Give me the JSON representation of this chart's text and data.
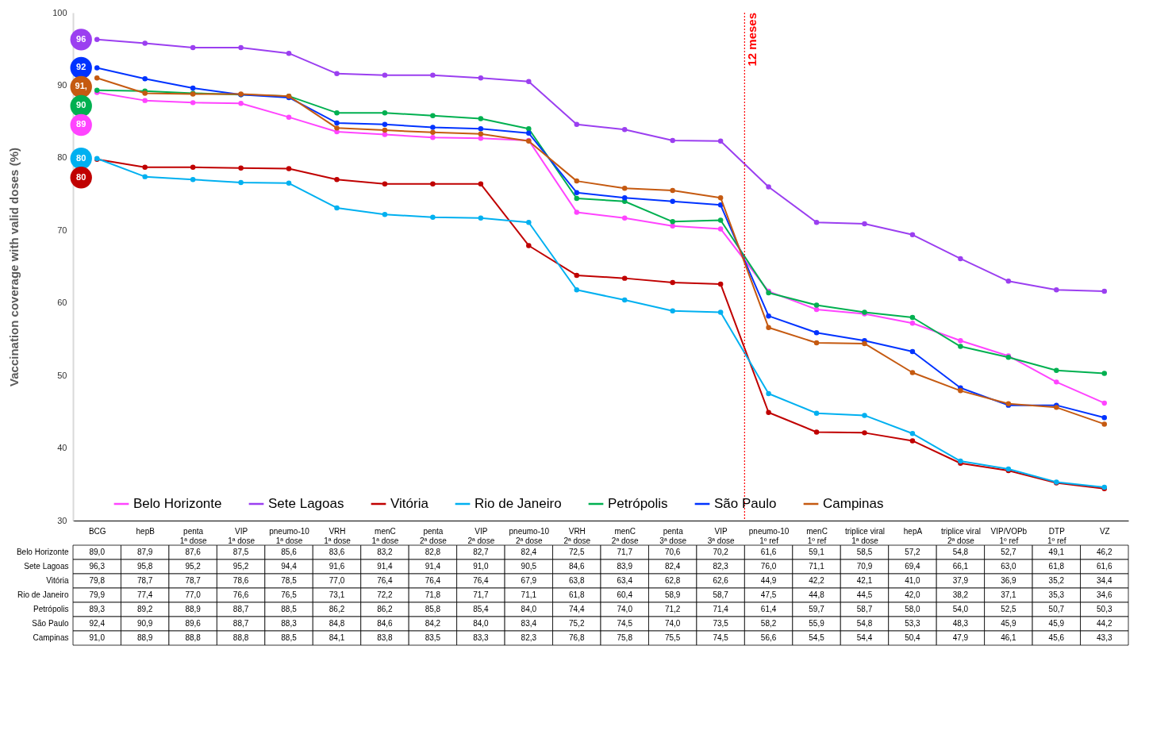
{
  "chart_data": {
    "type": "line",
    "ylabel": "Vaccination coverage with valid doses (%)",
    "categories": [
      "BCG",
      "hepB",
      "penta 1ª dose",
      "VIP 1ª dose",
      "pneumo-10 1ª dose",
      "VRH 1ª dose",
      "menC 1ª dose",
      "penta 2ª dose",
      "VIP 2ª dose",
      "pneumo-10 2ª dose",
      "VRH 2ª dose",
      "menC 2ª dose",
      "penta 3ª dose",
      "VIP 3ª dose",
      "pneumo-10 1º ref",
      "menC 1º ref",
      "triplice viral 1ª dose",
      "hepA",
      "triplice viral 2ª dose",
      "VIP/VOPb 1º ref",
      "DTP 1º ref",
      "VZ"
    ],
    "series": [
      {
        "name": "Belo Horizonte",
        "color": "#ff44ff",
        "values": [
          89.0,
          87.9,
          87.6,
          87.5,
          85.6,
          83.6,
          83.2,
          82.8,
          82.7,
          82.4,
          72.5,
          71.7,
          70.6,
          70.2,
          61.6,
          59.1,
          58.5,
          57.2,
          54.8,
          52.7,
          49.1,
          46.2
        ],
        "value_labels": [
          "89,0",
          "87,9",
          "87,6",
          "87,5",
          "85,6",
          "83,6",
          "83,2",
          "82,8",
          "82,7",
          "82,4",
          "72,5",
          "71,7",
          "70,6",
          "70,2",
          "61,6",
          "59,1",
          "58,5",
          "57,2",
          "54,8",
          "52,7",
          "49,1",
          "46,2"
        ]
      },
      {
        "name": "Sete Lagoas",
        "color": "#9b3ff0",
        "values": [
          96.3,
          95.8,
          95.2,
          95.2,
          94.4,
          91.6,
          91.4,
          91.4,
          91.0,
          90.5,
          84.6,
          83.9,
          82.4,
          82.3,
          76.0,
          71.1,
          70.9,
          69.4,
          66.1,
          63.0,
          61.8,
          61.6
        ],
        "value_labels": [
          "96,3",
          "95,8",
          "95,2",
          "95,2",
          "94,4",
          "91,6",
          "91,4",
          "91,4",
          "91,0",
          "90,5",
          "84,6",
          "83,9",
          "82,4",
          "82,3",
          "76,0",
          "71,1",
          "70,9",
          "69,4",
          "66,1",
          "63,0",
          "61,8",
          "61,6"
        ]
      },
      {
        "name": "Vitória",
        "color": "#c00000",
        "values": [
          79.8,
          78.7,
          78.7,
          78.6,
          78.5,
          77.0,
          76.4,
          76.4,
          76.4,
          67.9,
          63.8,
          63.4,
          62.8,
          62.6,
          44.9,
          42.2,
          42.1,
          41.0,
          37.9,
          36.9,
          35.2,
          34.4
        ],
        "value_labels": [
          "79,8",
          "78,7",
          "78,7",
          "78,6",
          "78,5",
          "77,0",
          "76,4",
          "76,4",
          "76,4",
          "67,9",
          "63,8",
          "63,4",
          "62,8",
          "62,6",
          "44,9",
          "42,2",
          "42,1",
          "41,0",
          "37,9",
          "36,9",
          "35,2",
          "34,4"
        ]
      },
      {
        "name": "Rio de Janeiro",
        "color": "#00b0f0",
        "values": [
          79.9,
          77.4,
          77.0,
          76.6,
          76.5,
          73.1,
          72.2,
          71.8,
          71.7,
          71.1,
          61.8,
          60.4,
          58.9,
          58.7,
          47.5,
          44.8,
          44.5,
          42.0,
          38.2,
          37.1,
          35.3,
          34.6
        ],
        "value_labels": [
          "79,9",
          "77,4",
          "77,0",
          "76,6",
          "76,5",
          "73,1",
          "72,2",
          "71,8",
          "71,7",
          "71,1",
          "61,8",
          "60,4",
          "58,9",
          "58,7",
          "47,5",
          "44,8",
          "44,5",
          "42,0",
          "38,2",
          "37,1",
          "35,3",
          "34,6"
        ]
      },
      {
        "name": "Petrópolis",
        "color": "#00b050",
        "values": [
          89.3,
          89.2,
          88.9,
          88.7,
          88.5,
          86.2,
          86.2,
          85.8,
          85.4,
          84.0,
          74.4,
          74.0,
          71.2,
          71.4,
          61.4,
          59.7,
          58.7,
          58.0,
          54.0,
          52.5,
          50.7,
          50.3
        ],
        "value_labels": [
          "89,3",
          "89,2",
          "88,9",
          "88,7",
          "88,5",
          "86,2",
          "86,2",
          "85,8",
          "85,4",
          "84,0",
          "74,4",
          "74,0",
          "71,2",
          "71,4",
          "61,4",
          "59,7",
          "58,7",
          "58,0",
          "54,0",
          "52,5",
          "50,7",
          "50,3"
        ]
      },
      {
        "name": "São Paulo",
        "color": "#0033ff",
        "values": [
          92.4,
          90.9,
          89.6,
          88.7,
          88.3,
          84.8,
          84.6,
          84.2,
          84.0,
          83.4,
          75.2,
          74.5,
          74.0,
          73.5,
          58.2,
          55.9,
          54.8,
          53.3,
          48.3,
          45.9,
          45.9,
          44.2
        ],
        "value_labels": [
          "92,4",
          "90,9",
          "89,6",
          "88,7",
          "88,3",
          "84,8",
          "84,6",
          "84,2",
          "84,0",
          "83,4",
          "75,2",
          "74,5",
          "74,0",
          "73,5",
          "58,2",
          "55,9",
          "54,8",
          "53,3",
          "48,3",
          "45,9",
          "45,9",
          "44,2"
        ]
      },
      {
        "name": "Campinas",
        "color": "#c55a11",
        "values": [
          91.0,
          88.9,
          88.8,
          88.8,
          88.5,
          84.1,
          83.8,
          83.5,
          83.3,
          82.3,
          76.8,
          75.8,
          75.5,
          74.5,
          56.6,
          54.5,
          54.4,
          50.4,
          47.9,
          46.1,
          45.6,
          43.3
        ],
        "value_labels": [
          "91,0",
          "88,9",
          "88,8",
          "88,8",
          "88,5",
          "84,1",
          "83,8",
          "83,5",
          "83,3",
          "82,3",
          "76,8",
          "75,8",
          "75,5",
          "74,5",
          "56,6",
          "54,5",
          "54,4",
          "50,4",
          "47,9",
          "46,1",
          "45,6",
          "43,3"
        ]
      }
    ],
    "ylim": [
      30,
      100
    ],
    "yticks": [
      30,
      40,
      50,
      60,
      70,
      80,
      90,
      100
    ],
    "ref_lines": [
      {
        "axis": "x",
        "value": "VIP 3ª dose",
        "label": "12 meses",
        "color": "#ff0000",
        "line_style": "dotted"
      }
    ],
    "annotations": [
      "96",
      "92",
      "91,",
      "90",
      "89",
      "80",
      "80"
    ],
    "legend": "bottom",
    "marker": "circle",
    "line_style": "solid",
    "grid": false
  }
}
